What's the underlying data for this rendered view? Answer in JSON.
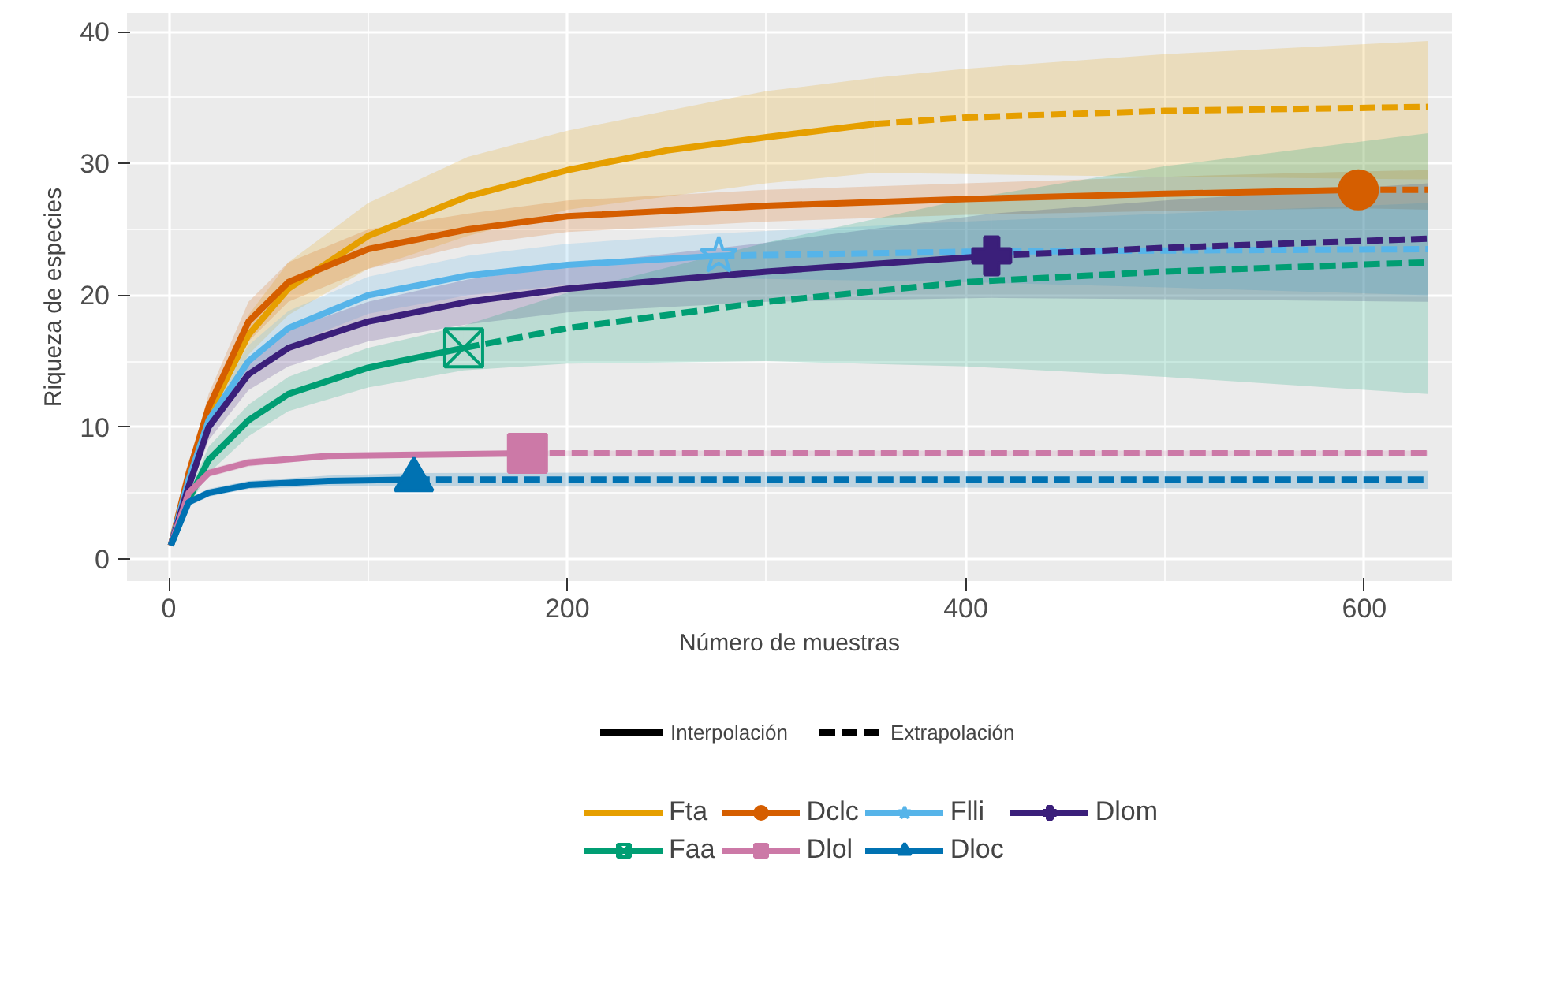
{
  "chart_data": {
    "type": "line",
    "xlabel": "Número de muestras",
    "ylabel": "Riqueza de especies",
    "xlim": [
      -21,
      644
    ],
    "ylim": [
      -1.7,
      41.4
    ],
    "xticks": [
      0,
      200,
      400,
      600
    ],
    "yticks": [
      0,
      10,
      20,
      30,
      40
    ],
    "grid": true,
    "legend": "bottom",
    "annotations": [
      "Interpolación",
      "Extrapolación"
    ],
    "series": [
      {
        "name": "Fta",
        "color": "#E69F00",
        "x": [
          1,
          10,
          20,
          40,
          60,
          100,
          150,
          200,
          250,
          300,
          354
        ],
        "values": [
          1,
          6,
          11,
          17,
          20.5,
          24.5,
          27.5,
          29.5,
          31,
          32,
          33
        ],
        "lower": [
          1,
          5.5,
          10,
          15.5,
          18.5,
          22,
          24.5,
          26.5,
          27.5,
          28.5,
          29.3
        ],
        "upper": [
          1,
          6.5,
          12,
          18.5,
          22.5,
          27,
          30.5,
          32.5,
          34,
          35.5,
          36.5
        ]
      },
      {
        "color": "#E69F00",
        "line_style": "dashed",
        "x": [
          354,
          400,
          500,
          632
        ],
        "values": [
          33,
          33.5,
          34,
          34.3
        ],
        "lower": [
          29.3,
          29.2,
          29,
          28.8
        ],
        "upper": [
          36.5,
          37.2,
          38.3,
          39.3
        ]
      },
      {
        "color": "#D55E00",
        "x": [
          1,
          10,
          20,
          40,
          60,
          100,
          150,
          200,
          300,
          400,
          500,
          597
        ],
        "values": [
          1,
          6.5,
          11.5,
          18,
          21,
          23.5,
          25,
          26,
          26.8,
          27.3,
          27.7,
          28
        ],
        "lower": [
          1,
          6,
          10.5,
          16.5,
          19.5,
          22,
          23.8,
          24.8,
          25.6,
          26.1,
          26.4,
          26.6
        ],
        "upper": [
          1,
          7,
          12.5,
          19.5,
          22.5,
          25,
          26.2,
          27.2,
          28,
          28.5,
          29,
          29.4
        ]
      },
      {
        "color": "#D55E00",
        "line_style": "dashed",
        "x": [
          597,
          632
        ],
        "values": [
          28,
          28
        ],
        "lower": [
          26.6,
          26.5
        ],
        "upper": [
          29.4,
          29.5
        ]
      },
      {
        "name": "Dclc",
        "type": "scatter",
        "marker": "circle",
        "color": "#D55E00",
        "x": [
          597
        ],
        "values": [
          28
        ]
      },
      {
        "color": "#56B4E9",
        "x": [
          1,
          10,
          20,
          40,
          60,
          100,
          150,
          200,
          276
        ],
        "values": [
          1,
          6,
          10.5,
          15,
          17.5,
          20,
          21.5,
          22.3,
          23
        ],
        "lower": [
          1,
          5.5,
          9.5,
          13.8,
          16.2,
          18.6,
          20,
          20.8,
          21.3
        ],
        "upper": [
          1,
          6.5,
          11.5,
          16.2,
          18.8,
          21.4,
          23,
          23.9,
          24.7
        ]
      },
      {
        "color": "#56B4E9",
        "line_style": "dashed",
        "x": [
          276,
          400,
          500,
          632
        ],
        "values": [
          23,
          23.3,
          23.4,
          23.5
        ],
        "lower": [
          21.3,
          21,
          20.6,
          20
        ],
        "upper": [
          24.7,
          25.6,
          26.2,
          27
        ]
      },
      {
        "name": "Flli",
        "type": "scatter",
        "marker": "star",
        "color": "#56B4E9",
        "x": [
          276
        ],
        "values": [
          23
        ]
      },
      {
        "color": "#3B1F7A",
        "x": [
          1,
          10,
          20,
          40,
          60,
          100,
          150,
          200,
          300,
          413
        ],
        "values": [
          1,
          5.5,
          10,
          14,
          16,
          18,
          19.5,
          20.5,
          21.8,
          23
        ],
        "lower": [
          1,
          5,
          9,
          12.8,
          14.6,
          16.5,
          17.8,
          18.7,
          19.5,
          19.8
        ],
        "upper": [
          1,
          6,
          11,
          15.2,
          17.4,
          19.5,
          21.2,
          22.3,
          24,
          26.2
        ]
      },
      {
        "color": "#3B1F7A",
        "line_style": "dashed",
        "x": [
          413,
          500,
          632
        ],
        "values": [
          23,
          23.6,
          24.3
        ],
        "lower": [
          19.8,
          19.7,
          19.5
        ],
        "upper": [
          26.2,
          27.2,
          28.5
        ]
      },
      {
        "name": "Dlom",
        "type": "scatter",
        "marker": "cross",
        "color": "#3B1F7A",
        "x": [
          413
        ],
        "values": [
          23
        ]
      },
      {
        "color": "#009E73",
        "x": [
          1,
          10,
          20,
          40,
          60,
          100,
          148
        ],
        "values": [
          1,
          4.5,
          7.5,
          10.5,
          12.5,
          14.5,
          16
        ],
        "lower": [
          1,
          4,
          6.5,
          9.3,
          11.2,
          13,
          14.3
        ],
        "upper": [
          1,
          5,
          8.5,
          11.7,
          13.8,
          16,
          17.7
        ]
      },
      {
        "color": "#009E73",
        "line_style": "dashed",
        "x": [
          148,
          200,
          300,
          400,
          500,
          632
        ],
        "values": [
          16,
          17.5,
          19.5,
          21,
          21.8,
          22.5
        ],
        "lower": [
          14.3,
          14.8,
          15,
          14.6,
          13.8,
          12.5
        ],
        "upper": [
          17.7,
          20.2,
          24,
          27.3,
          29.8,
          32.3
        ]
      },
      {
        "name": "Faa",
        "type": "scatter",
        "marker": "square_x",
        "color": "#009E73",
        "x": [
          148
        ],
        "values": [
          16
        ]
      },
      {
        "color": "#CC79A7",
        "x": [
          1,
          10,
          20,
          40,
          80,
          180
        ],
        "values": [
          1,
          5,
          6.5,
          7.3,
          7.8,
          8
        ],
        "lower": [
          1,
          4.7,
          6.2,
          7,
          7.6,
          7.8
        ],
        "upper": [
          1,
          5.3,
          6.8,
          7.6,
          8,
          8.2
        ]
      },
      {
        "color": "#CC79A7",
        "line_style": "dashed",
        "x": [
          180,
          632
        ],
        "values": [
          8,
          8
        ],
        "lower": [
          7.8,
          7.8
        ],
        "upper": [
          8.2,
          8.2
        ]
      },
      {
        "name": "Dlol",
        "type": "scatter",
        "marker": "square",
        "color": "#CC79A7",
        "x": [
          180
        ],
        "values": [
          8
        ]
      },
      {
        "color": "#0072B2",
        "x": [
          1,
          10,
          20,
          40,
          80,
          123
        ],
        "values": [
          1,
          4.3,
          5,
          5.6,
          5.9,
          6
        ],
        "lower": [
          1,
          4,
          4.7,
          5.3,
          5.5,
          5.5
        ],
        "upper": [
          1,
          4.6,
          5.3,
          5.9,
          6.3,
          6.5
        ]
      },
      {
        "color": "#0072B2",
        "line_style": "dashed",
        "x": [
          123,
          632
        ],
        "values": [
          6,
          6
        ],
        "lower": [
          5.5,
          5.3
        ],
        "upper": [
          6.5,
          6.7
        ]
      },
      {
        "name": "Dloc",
        "type": "scatter",
        "marker": "triangle",
        "color": "#0072B2",
        "x": [
          123
        ],
        "values": [
          6
        ]
      }
    ]
  }
}
